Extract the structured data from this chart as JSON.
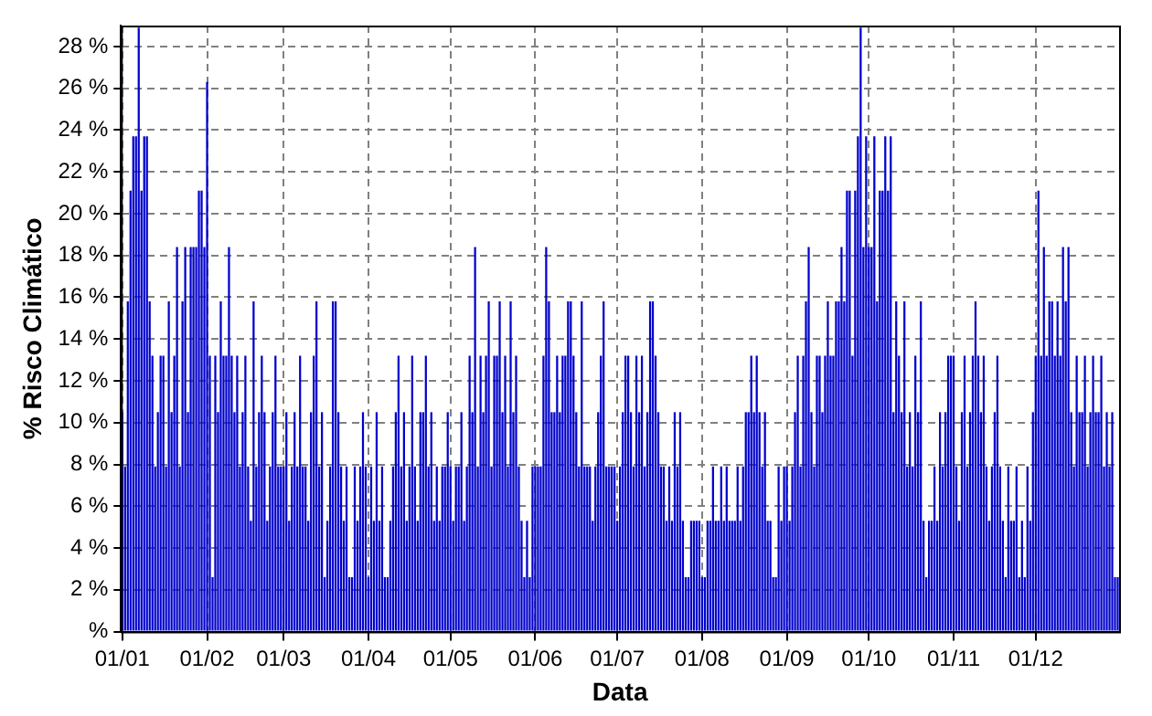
{
  "chart_data": {
    "type": "bar",
    "xlabel": "Data",
    "ylabel": "% Risco Climático",
    "color": "#0000cc",
    "grid": true,
    "legend": false,
    "ylim": [
      0,
      29
    ],
    "yticks": [
      {
        "value": 0,
        "label": "%"
      },
      {
        "value": 2,
        "label": "2 %"
      },
      {
        "value": 4,
        "label": "4 %"
      },
      {
        "value": 6,
        "label": "6 %"
      },
      {
        "value": 8,
        "label": "8 %"
      },
      {
        "value": 10,
        "label": "10 %"
      },
      {
        "value": 12,
        "label": "12 %"
      },
      {
        "value": 14,
        "label": "14 %"
      },
      {
        "value": 16,
        "label": "16 %"
      },
      {
        "value": 18,
        "label": "18 %"
      },
      {
        "value": 20,
        "label": "20 %"
      },
      {
        "value": 22,
        "label": "22 %"
      },
      {
        "value": 24,
        "label": "24 %"
      },
      {
        "value": 26,
        "label": "26 %"
      },
      {
        "value": 28,
        "label": "28 %"
      }
    ],
    "categories": [
      "01/01",
      null,
      null,
      null,
      null,
      null,
      null,
      null,
      null,
      null,
      null,
      null,
      null,
      null,
      null,
      null,
      null,
      null,
      null,
      null,
      null,
      null,
      null,
      null,
      null,
      null,
      null,
      null,
      null,
      null,
      null,
      "01/02",
      null,
      null,
      null,
      null,
      null,
      null,
      null,
      null,
      null,
      null,
      null,
      null,
      null,
      null,
      null,
      null,
      null,
      null,
      null,
      null,
      null,
      null,
      null,
      null,
      null,
      null,
      null,
      "01/03",
      null,
      null,
      null,
      null,
      null,
      null,
      null,
      null,
      null,
      null,
      null,
      null,
      null,
      null,
      null,
      null,
      null,
      null,
      null,
      null,
      null,
      null,
      null,
      null,
      null,
      null,
      null,
      null,
      null,
      null,
      "01/04",
      null,
      null,
      null,
      null,
      null,
      null,
      null,
      null,
      null,
      null,
      null,
      null,
      null,
      null,
      null,
      null,
      null,
      null,
      null,
      null,
      null,
      null,
      null,
      null,
      null,
      null,
      null,
      null,
      null,
      "01/05",
      null,
      null,
      null,
      null,
      null,
      null,
      null,
      null,
      null,
      null,
      null,
      null,
      null,
      null,
      null,
      null,
      null,
      null,
      null,
      null,
      null,
      null,
      null,
      null,
      null,
      null,
      null,
      null,
      null,
      null,
      "01/06",
      null,
      null,
      null,
      null,
      null,
      null,
      null,
      null,
      null,
      null,
      null,
      null,
      null,
      null,
      null,
      null,
      null,
      null,
      null,
      null,
      null,
      null,
      null,
      null,
      null,
      null,
      null,
      null,
      null,
      "01/07",
      null,
      null,
      null,
      null,
      null,
      null,
      null,
      null,
      null,
      null,
      null,
      null,
      null,
      null,
      null,
      null,
      null,
      null,
      null,
      null,
      null,
      null,
      null,
      null,
      null,
      null,
      null,
      null,
      null,
      null,
      "01/08",
      null,
      null,
      null,
      null,
      null,
      null,
      null,
      null,
      null,
      null,
      null,
      null,
      null,
      null,
      null,
      null,
      null,
      null,
      null,
      null,
      null,
      null,
      null,
      null,
      null,
      null,
      null,
      null,
      null,
      null,
      "01/09",
      null,
      null,
      null,
      null,
      null,
      null,
      null,
      null,
      null,
      null,
      null,
      null,
      null,
      null,
      null,
      null,
      null,
      null,
      null,
      null,
      null,
      null,
      null,
      null,
      null,
      null,
      null,
      null,
      null,
      "01/10",
      null,
      null,
      null,
      null,
      null,
      null,
      null,
      null,
      null,
      null,
      null,
      null,
      null,
      null,
      null,
      null,
      null,
      null,
      null,
      null,
      null,
      null,
      null,
      null,
      null,
      null,
      null,
      null,
      null,
      null,
      "01/11",
      null,
      null,
      null,
      null,
      null,
      null,
      null,
      null,
      null,
      null,
      null,
      null,
      null,
      null,
      null,
      null,
      null,
      null,
      null,
      null,
      null,
      null,
      null,
      null,
      null,
      null,
      null,
      null,
      null,
      "01/12",
      null,
      null,
      null,
      null,
      null,
      null,
      null,
      null,
      null,
      null,
      null,
      null,
      null,
      null,
      null,
      null,
      null,
      null,
      null,
      null,
      null,
      null,
      null,
      null,
      null,
      null,
      null,
      null,
      null,
      null
    ],
    "values": [
      10.5,
      7.9,
      15.8,
      21.1,
      23.7,
      23.7,
      28.9,
      21.1,
      23.7,
      23.7,
      15.8,
      13.2,
      7.9,
      10.5,
      13.2,
      13.2,
      7.9,
      15.8,
      10.5,
      13.2,
      18.4,
      7.9,
      15.8,
      18.4,
      10.5,
      18.4,
      18.4,
      18.4,
      21.1,
      21.1,
      18.4,
      26.3,
      13.2,
      2.6,
      13.2,
      10.5,
      15.8,
      13.2,
      13.2,
      18.4,
      13.2,
      10.5,
      13.2,
      7.9,
      10.5,
      13.2,
      7.9,
      5.3,
      15.8,
      7.9,
      10.5,
      13.2,
      10.5,
      5.3,
      7.9,
      10.5,
      13.2,
      7.9,
      7.9,
      7.9,
      10.5,
      5.3,
      7.9,
      10.5,
      7.9,
      13.2,
      7.9,
      7.9,
      5.3,
      10.5,
      13.2,
      15.8,
      7.9,
      10.5,
      2.6,
      5.3,
      7.9,
      15.8,
      15.8,
      10.5,
      7.9,
      5.3,
      7.9,
      2.6,
      2.6,
      7.9,
      5.3,
      7.9,
      10.5,
      7.9,
      2.6,
      7.9,
      5.3,
      10.5,
      5.3,
      7.9,
      2.6,
      2.6,
      5.3,
      7.9,
      10.5,
      13.2,
      7.9,
      10.5,
      5.3,
      7.9,
      13.2,
      7.9,
      5.3,
      10.5,
      10.5,
      13.2,
      7.9,
      10.5,
      5.3,
      7.9,
      5.3,
      7.9,
      7.9,
      10.5,
      7.9,
      5.3,
      7.9,
      7.9,
      10.5,
      5.3,
      7.9,
      13.2,
      10.5,
      18.4,
      7.9,
      13.2,
      10.5,
      13.2,
      15.8,
      7.9,
      13.2,
      13.2,
      15.8,
      10.5,
      13.2,
      7.9,
      15.8,
      10.5,
      13.2,
      7.9,
      5.3,
      2.6,
      5.3,
      2.6,
      7.9,
      7.9,
      7.9,
      7.9,
      13.2,
      18.4,
      15.8,
      10.5,
      10.5,
      13.2,
      10.5,
      13.2,
      13.2,
      15.8,
      15.8,
      13.2,
      10.5,
      7.9,
      15.8,
      7.9,
      7.9,
      7.9,
      5.3,
      7.9,
      10.5,
      13.2,
      15.8,
      7.9,
      7.9,
      7.9,
      7.9,
      5.3,
      7.9,
      10.5,
      13.2,
      13.2,
      10.5,
      7.9,
      13.2,
      10.5,
      13.2,
      7.9,
      10.5,
      15.8,
      15.8,
      13.2,
      10.5,
      7.9,
      7.9,
      5.3,
      7.9,
      5.3,
      10.5,
      7.9,
      10.5,
      5.3,
      2.6,
      2.6,
      5.3,
      5.3,
      5.3,
      5.3,
      2.6,
      2.6,
      5.3,
      5.3,
      7.9,
      5.3,
      5.3,
      7.9,
      5.3,
      7.9,
      5.3,
      5.3,
      5.3,
      7.9,
      5.3,
      7.9,
      10.5,
      10.5,
      13.2,
      10.5,
      13.2,
      10.5,
      7.9,
      10.5,
      5.3,
      5.3,
      2.6,
      2.6,
      7.9,
      5.3,
      7.9,
      7.9,
      5.3,
      7.9,
      10.5,
      13.2,
      7.9,
      13.2,
      15.8,
      18.4,
      10.5,
      7.9,
      13.2,
      13.2,
      10.5,
      13.2,
      15.8,
      13.2,
      13.2,
      15.8,
      15.8,
      18.4,
      15.8,
      21.1,
      21.1,
      13.2,
      21.1,
      23.7,
      28.9,
      18.4,
      23.7,
      18.4,
      18.4,
      23.7,
      15.8,
      21.1,
      21.1,
      23.7,
      21.1,
      23.7,
      10.5,
      15.8,
      13.2,
      10.5,
      15.8,
      7.9,
      10.5,
      7.9,
      13.2,
      10.5,
      15.8,
      5.3,
      2.6,
      5.3,
      5.3,
      7.9,
      5.3,
      10.5,
      7.9,
      10.5,
      13.2,
      13.2,
      13.2,
      7.9,
      5.3,
      10.5,
      13.2,
      7.9,
      10.5,
      13.2,
      15.8,
      13.2,
      10.5,
      13.2,
      7.9,
      5.3,
      7.9,
      10.5,
      13.2,
      7.9,
      5.3,
      2.6,
      7.9,
      5.3,
      5.3,
      7.9,
      2.6,
      5.3,
      2.6,
      7.9,
      5.3,
      10.5,
      13.2,
      21.1,
      13.2,
      18.4,
      13.2,
      15.8,
      15.8,
      13.2,
      15.8,
      13.2,
      18.4,
      15.8,
      18.4,
      10.5,
      7.9,
      13.2,
      10.5,
      10.5,
      13.2,
      7.9,
      10.5,
      13.2,
      10.5,
      10.5,
      13.2,
      7.9,
      10.5,
      7.9,
      10.5,
      2.6,
      2.6
    ]
  }
}
